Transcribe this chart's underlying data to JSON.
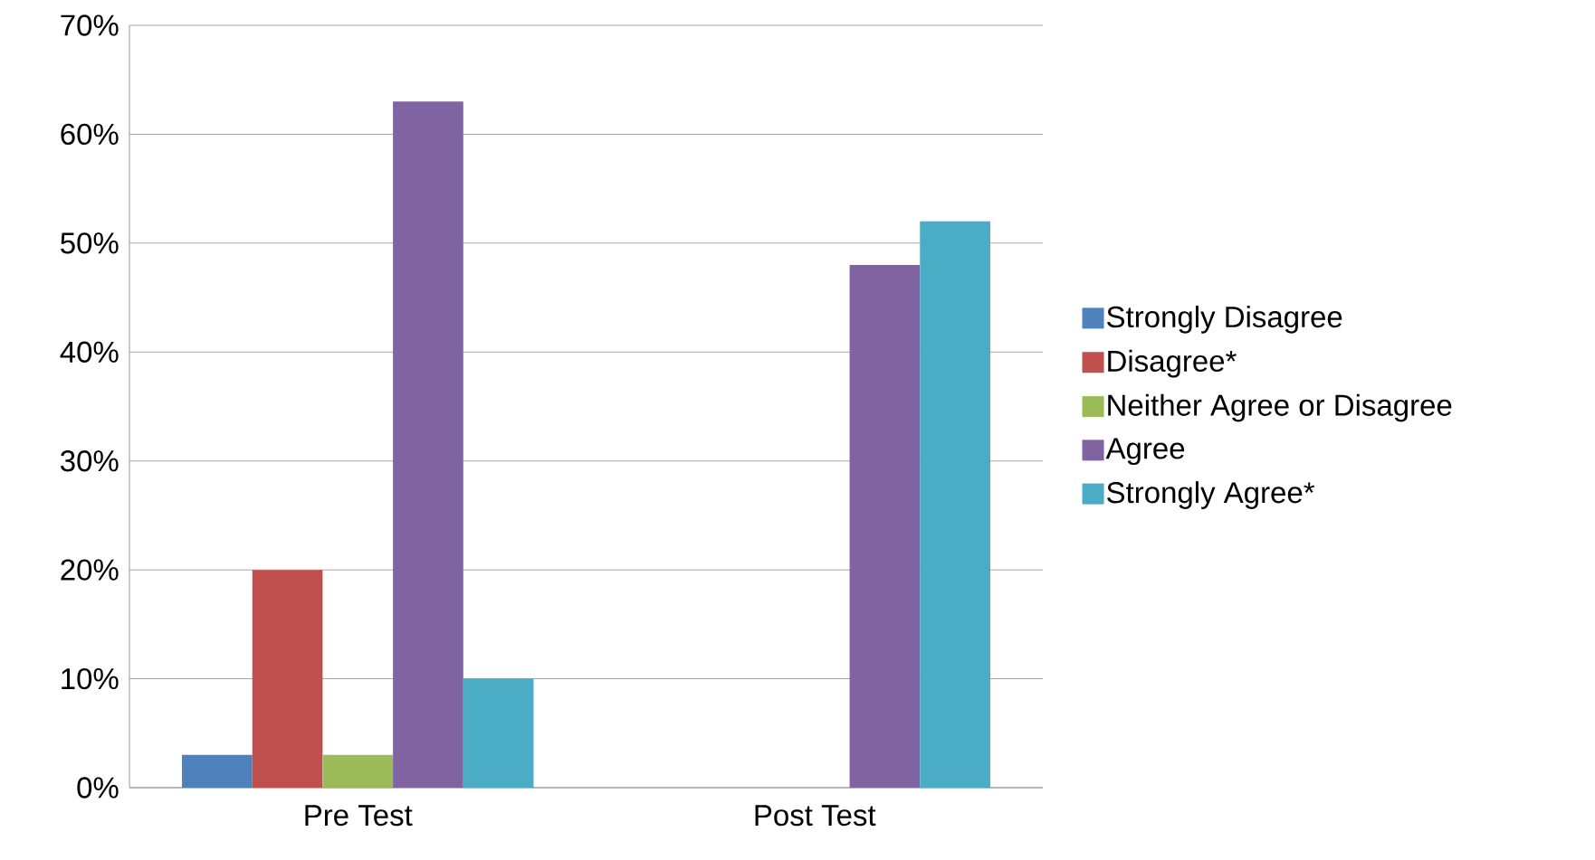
{
  "chart_data": {
    "type": "bar",
    "categories": [
      "Pre Test",
      "Post Test"
    ],
    "series": [
      {
        "name": "Strongly Disagree",
        "color": "#4f81bd",
        "values": [
          3,
          0
        ]
      },
      {
        "name": "Disagree*",
        "color": "#c0504d",
        "values": [
          20,
          0
        ]
      },
      {
        "name": "Neither Agree or Disagree",
        "color": "#9bbb59",
        "values": [
          3,
          0
        ]
      },
      {
        "name": "Agree",
        "color": "#8064a2",
        "values": [
          63,
          48
        ]
      },
      {
        "name": "Strongly Agree*",
        "color": "#4bacc6",
        "values": [
          10,
          52
        ]
      }
    ],
    "ylim": [
      0,
      70
    ],
    "yticks": [
      {
        "value": 0,
        "label": "0%"
      },
      {
        "value": 10,
        "label": "10%"
      },
      {
        "value": 20,
        "label": "20%"
      },
      {
        "value": 30,
        "label": "30%"
      },
      {
        "value": 40,
        "label": "40%"
      },
      {
        "value": 50,
        "label": "50%"
      },
      {
        "value": 60,
        "label": "60%"
      },
      {
        "value": 70,
        "label": "70%"
      }
    ],
    "grid": "y",
    "legend": "right"
  }
}
